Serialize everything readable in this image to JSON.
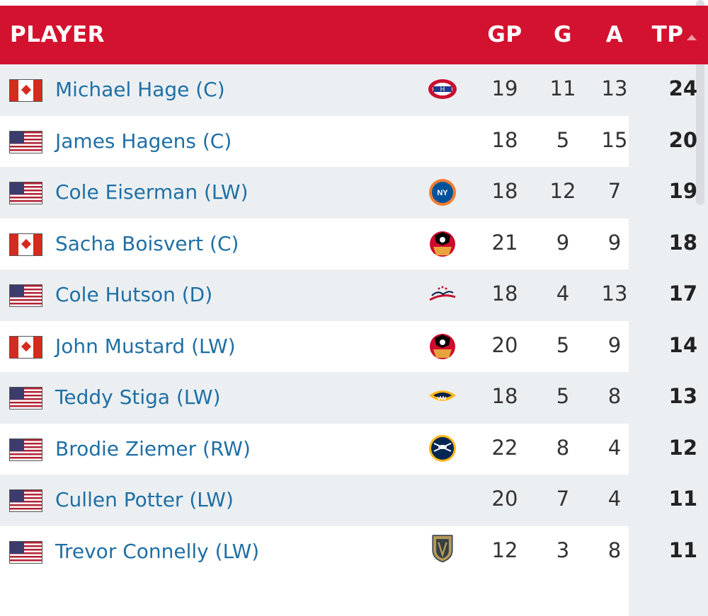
{
  "header": {
    "player": "PLAYER",
    "gp": "GP",
    "g": "G",
    "a": "A",
    "tp": "TP",
    "sort_column": "TP",
    "sort_direction": "descending"
  },
  "colors": {
    "header_bg": "#d3122f",
    "name_link": "#1e6fa5",
    "row_shade": "#eceff2"
  },
  "rows": [
    {
      "name": "Michael Hage (C)",
      "flag": "canada-flag-icon",
      "team_logo": "canadiens-logo-icon",
      "gp": "19",
      "g": "11",
      "a": "13",
      "tp": "24"
    },
    {
      "name": "James Hagens (C)",
      "flag": "usa-flag-icon",
      "team_logo": "",
      "gp": "18",
      "g": "5",
      "a": "15",
      "tp": "20"
    },
    {
      "name": "Cole Eiserman (LW)",
      "flag": "usa-flag-icon",
      "team_logo": "islanders-logo-icon",
      "gp": "18",
      "g": "12",
      "a": "7",
      "tp": "19"
    },
    {
      "name": "Sacha Boisvert (C)",
      "flag": "canada-flag-icon",
      "team_logo": "blackhawks-logo-icon",
      "gp": "21",
      "g": "9",
      "a": "9",
      "tp": "18"
    },
    {
      "name": "Cole Hutson (D)",
      "flag": "usa-flag-icon",
      "team_logo": "capitals-logo-icon",
      "gp": "18",
      "g": "4",
      "a": "13",
      "tp": "17"
    },
    {
      "name": "John Mustard (LW)",
      "flag": "canada-flag-icon",
      "team_logo": "blackhawks-logo-icon",
      "gp": "20",
      "g": "5",
      "a": "9",
      "tp": "14"
    },
    {
      "name": "Teddy Stiga (LW)",
      "flag": "usa-flag-icon",
      "team_logo": "predators-logo-icon",
      "gp": "18",
      "g": "5",
      "a": "8",
      "tp": "13"
    },
    {
      "name": "Brodie Ziemer (RW)",
      "flag": "usa-flag-icon",
      "team_logo": "sabres-logo-icon",
      "gp": "22",
      "g": "8",
      "a": "4",
      "tp": "12"
    },
    {
      "name": "Cullen Potter (LW)",
      "flag": "usa-flag-icon",
      "team_logo": "",
      "gp": "20",
      "g": "7",
      "a": "4",
      "tp": "11"
    },
    {
      "name": "Trevor Connelly (LW)",
      "flag": "usa-flag-icon",
      "team_logo": "golden-knights-logo-icon",
      "gp": "12",
      "g": "3",
      "a": "8",
      "tp": "11"
    }
  ]
}
